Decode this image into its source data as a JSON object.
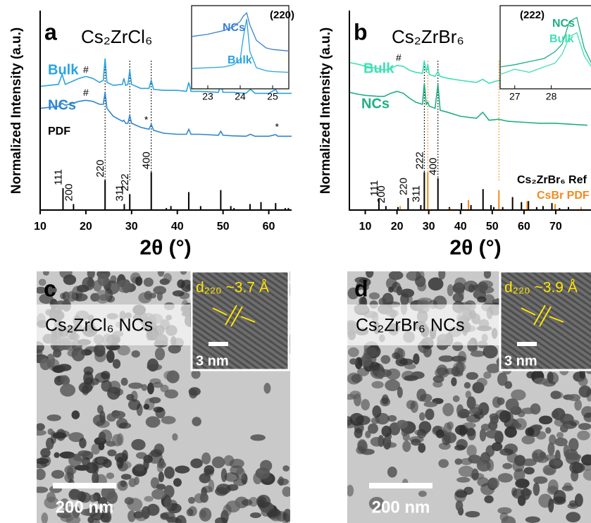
{
  "chart_data": [
    {
      "type": "line",
      "panel": "a",
      "title": "Cs₂ZrCl₆",
      "x_label": "2θ (°)",
      "y_label": "Normalized Intensity (a.u.)",
      "xlim": [
        10,
        65
      ],
      "xticks": [
        10,
        20,
        30,
        40,
        50,
        60
      ],
      "ylim": [
        0,
        10
      ],
      "series": [
        {
          "name": "Bulk",
          "color": "#29a3df",
          "x": [
            10,
            12,
            14,
            14.8,
            15.5,
            17,
            18.5,
            20,
            21.5,
            23,
            23.8,
            24.2,
            24.6,
            26,
            28,
            28.3,
            28.7,
            29.2,
            29.6,
            30,
            32,
            33.8,
            34.3,
            34.8,
            37,
            40,
            42,
            42.5,
            43,
            45,
            49,
            49.5,
            50,
            52,
            55,
            56,
            57,
            60,
            61.5,
            62,
            65
          ],
          "values": [
            6.2,
            6.25,
            6.3,
            6.8,
            6.3,
            6.45,
            6.6,
            6.7,
            6.6,
            6.4,
            6.5,
            7.6,
            6.4,
            6.25,
            6.3,
            6.6,
            6.25,
            6.3,
            7.0,
            6.3,
            6.1,
            6.1,
            6.5,
            6.05,
            6.0,
            6.0,
            5.95,
            6.4,
            5.95,
            5.95,
            5.9,
            6.3,
            5.9,
            5.9,
            5.85,
            6.05,
            5.85,
            5.85,
            6.05,
            5.85,
            5.85
          ]
        },
        {
          "name": "NCs",
          "color": "#2f86cf",
          "x": [
            10,
            12,
            14,
            14.8,
            15.5,
            17,
            18.5,
            20,
            21.5,
            23,
            23.8,
            24.2,
            24.6,
            26,
            28,
            28.3,
            28.7,
            29.2,
            29.6,
            30,
            32,
            33.8,
            34.3,
            34.8,
            37,
            40,
            42,
            42.5,
            43,
            45,
            49,
            49.5,
            50,
            52,
            55,
            56,
            57,
            60,
            61.5,
            62,
            65
          ],
          "values": [
            5.1,
            5.15,
            5.2,
            5.35,
            5.25,
            5.35,
            5.45,
            5.5,
            5.45,
            5.3,
            5.3,
            5.9,
            5.1,
            4.7,
            4.45,
            4.5,
            4.35,
            4.35,
            4.75,
            4.35,
            4.15,
            4.05,
            4.3,
            4.0,
            3.85,
            3.8,
            3.8,
            4.05,
            3.8,
            3.8,
            3.75,
            3.95,
            3.75,
            3.72,
            3.7,
            3.8,
            3.7,
            3.7,
            3.78,
            3.7,
            3.7
          ]
        }
      ],
      "references": [
        {
          "name": "PDF",
          "color": "#000000",
          "x": [
            15.0,
            17.3,
            24.2,
            28.4,
            29.6,
            34.3,
            37.6,
            38.6,
            42.5,
            45.1,
            49.5,
            51.7,
            52.4,
            55.9,
            58.3,
            61.5,
            63.6,
            64.3
          ],
          "values": [
            1.1,
            0.3,
            1.5,
            0.3,
            0.8,
            1.9,
            0.1,
            0.2,
            0.9,
            0.2,
            1.0,
            0.2,
            0.1,
            0.3,
            0.4,
            0.35,
            0.1,
            0.1
          ]
        }
      ],
      "peak_labels": [
        {
          "text": "111",
          "x": 15.0
        },
        {
          "text": "200",
          "x": 17.3
        },
        {
          "text": "220",
          "x": 24.2
        },
        {
          "text": "311",
          "x": 28.4
        },
        {
          "text": "222",
          "x": 29.6
        },
        {
          "text": "400",
          "x": 34.3
        }
      ],
      "guide_lines": [
        {
          "x": 24.2,
          "color": "#000000"
        },
        {
          "x": 29.6,
          "color": "#000000"
        },
        {
          "x": 34.3,
          "color": "#000000"
        }
      ],
      "annotations": [
        {
          "text": "#",
          "x": 20,
          "y": 7.0
        },
        {
          "text": "#",
          "x": 20,
          "y": 5.85
        },
        {
          "text": "*",
          "x": 33.2,
          "y": 4.5
        },
        {
          "text": "*",
          "x": 61.8,
          "y": 4.15
        }
      ],
      "inset": {
        "title": "(220)",
        "xlim": [
          22.5,
          25.5
        ],
        "xticks": [
          23,
          24,
          25
        ],
        "ylim": [
          0,
          10
        ],
        "series": [
          {
            "name": "NCs",
            "color": "#3a7fd0",
            "x": [
              22.5,
              23,
              23.5,
              23.8,
              24,
              24.1,
              24.2,
              24.3,
              24.5,
              24.8,
              25,
              25.5
            ],
            "values": [
              6.5,
              6.8,
              7.3,
              7.8,
              8.5,
              9.2,
              9.6,
              8.0,
              6.0,
              5.0,
              4.8,
              4.6
            ]
          },
          {
            "name": "Bulk",
            "color": "#29a3df",
            "x": [
              22.5,
              23,
              23.5,
              23.8,
              24,
              24.1,
              24.2,
              24.3,
              24.5,
              24.8,
              25,
              25.5
            ],
            "values": [
              2.3,
              2.4,
              2.5,
              2.8,
              3.5,
              6.5,
              8.8,
              4.5,
              2.4,
              2.0,
              1.9,
              1.8
            ]
          }
        ]
      }
    },
    {
      "type": "line",
      "panel": "b",
      "title": "Cs₂ZrBr₆",
      "x_label": "2θ (°)",
      "y_label": "Normalized Intensity (a.u.)",
      "xlim": [
        5,
        80
      ],
      "xticks": [
        10,
        20,
        30,
        40,
        50,
        60,
        70
      ],
      "ylim": [
        0,
        10
      ],
      "series": [
        {
          "name": "Bulk",
          "color": "#3fe0b4",
          "x": [
            5,
            8,
            10,
            14,
            16,
            18,
            20,
            22,
            24,
            26,
            28,
            28.6,
            29.2,
            29.7,
            30.2,
            32,
            32.9,
            33.6,
            36,
            40,
            45,
            47,
            49,
            52,
            55,
            60,
            65,
            70,
            75,
            80
          ],
          "values": [
            7.4,
            7.3,
            7.2,
            7.1,
            7.0,
            7.1,
            7.25,
            7.2,
            7.0,
            6.9,
            6.85,
            7.5,
            6.9,
            7.3,
            6.8,
            6.7,
            6.95,
            6.7,
            6.6,
            6.5,
            6.4,
            6.55,
            6.35,
            6.5,
            6.3,
            6.25,
            6.2,
            6.2,
            6.15,
            6.1
          ]
        },
        {
          "name": "NCs",
          "color": "#1fae85",
          "x": [
            5,
            8,
            10,
            14,
            16,
            18,
            20,
            22,
            24,
            26,
            28,
            28.6,
            29.2,
            29.7,
            30.2,
            32,
            32.9,
            33.6,
            36,
            40,
            45,
            47,
            49,
            52,
            55,
            60,
            65,
            70,
            75,
            80
          ],
          "values": [
            5.9,
            5.8,
            5.75,
            5.7,
            5.7,
            5.85,
            5.95,
            5.85,
            5.6,
            5.4,
            5.3,
            6.35,
            5.3,
            5.4,
            5.2,
            5.1,
            6.3,
            5.0,
            4.9,
            4.7,
            4.6,
            4.9,
            4.5,
            4.55,
            4.45,
            4.4,
            4.35,
            4.35,
            4.3,
            4.25
          ]
        }
      ],
      "references": [
        {
          "name": "Cs₂ZrBr₆ Ref",
          "color": "#000000",
          "x": [
            14.3,
            16.5,
            20.3,
            23.5,
            27.5,
            28.6,
            32.9,
            36.5,
            40.3,
            43.3,
            47.1,
            49.6,
            50.5,
            53.3,
            56.4,
            59.2,
            61.4,
            64.0,
            66.0,
            68.8,
            71.2,
            74.0
          ],
          "values": [
            0.55,
            0.2,
            0.15,
            0.6,
            0.25,
            1.9,
            1.6,
            0.15,
            0.35,
            0.25,
            1.05,
            0.25,
            0.15,
            0.15,
            0.65,
            0.4,
            0.45,
            0.15,
            0.2,
            0.35,
            0.1,
            0.15
          ]
        },
        {
          "name": "CsBr PDF",
          "color": "#f28a1e",
          "x": [
            21.0,
            29.7,
            36.7,
            42.5,
            52.1,
            61.0,
            69.8,
            78.0
          ],
          "values": [
            0.2,
            1.9,
            0.1,
            0.5,
            1.0,
            0.45,
            0.3,
            0.15
          ]
        }
      ],
      "peak_labels": [
        {
          "text": "111",
          "x": 14.3
        },
        {
          "text": "200",
          "x": 16.5
        },
        {
          "text": "220",
          "x": 23.5
        },
        {
          "text": "311",
          "x": 27.5
        },
        {
          "text": "222",
          "x": 28.6
        },
        {
          "text": "400",
          "x": 32.9
        }
      ],
      "guide_lines": [
        {
          "x": 28.6,
          "color": "#000000"
        },
        {
          "x": 32.9,
          "color": "#000000"
        },
        {
          "x": 29.7,
          "color": "#f28a1e"
        },
        {
          "x": 52.1,
          "color": "#f28a1e"
        }
      ],
      "annotations": [
        {
          "text": "#",
          "x": 20.5,
          "y": 7.6
        }
      ],
      "inset": {
        "title": "(222)",
        "xlim": [
          26.6,
          29.3
        ],
        "xticks": [
          27,
          28
        ],
        "ylim": [
          0,
          10
        ],
        "series": [
          {
            "name": "NCs",
            "color": "#1fae85",
            "x": [
              26.6,
              27,
              27.4,
              27.8,
              28.1,
              28.3,
              28.5,
              28.7,
              28.9,
              29.1,
              29.3
            ],
            "values": [
              2.5,
              2.8,
              3.2,
              3.6,
              4.5,
              5.5,
              8.5,
              9.0,
              5.0,
              3.0,
              2.0
            ]
          },
          {
            "name": "Bulk",
            "color": "#3fe0b4",
            "x": [
              26.6,
              27,
              27.4,
              27.8,
              28.1,
              28.3,
              28.5,
              28.7,
              28.9,
              29.1,
              29.3
            ],
            "values": [
              1.5,
              2.2,
              1.8,
              2.5,
              3.0,
              4.2,
              6.5,
              7.0,
              4.0,
              2.5,
              1.5
            ]
          }
        ]
      }
    }
  ],
  "images": [
    {
      "label": "c",
      "caption": "Cs₂ZrCl₆ NCs",
      "scale_bar": "200 nm",
      "inset_spacing": "d₂₂₀ ~3.7 Å",
      "inset_scale_bar": "3 nm"
    },
    {
      "label": "d",
      "caption": "Cs₂ZrBr₆ NCs",
      "scale_bar": "200 nm",
      "inset_spacing": "d₂₂₀ ~3.9 Å",
      "inset_scale_bar": "3 nm"
    }
  ]
}
